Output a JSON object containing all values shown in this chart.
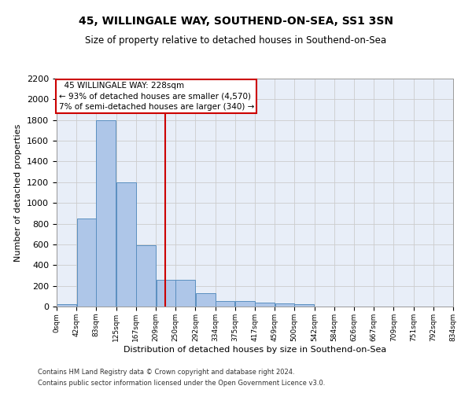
{
  "title": "45, WILLINGALE WAY, SOUTHEND-ON-SEA, SS1 3SN",
  "subtitle": "Size of property relative to detached houses in Southend-on-Sea",
  "xlabel": "Distribution of detached houses by size in Southend-on-Sea",
  "ylabel": "Number of detached properties",
  "footnote1": "Contains HM Land Registry data © Crown copyright and database right 2024.",
  "footnote2": "Contains public sector information licensed under the Open Government Licence v3.0.",
  "bin_edges": [
    0,
    42,
    83,
    125,
    167,
    209,
    250,
    292,
    334,
    375,
    417,
    459,
    500,
    542,
    584,
    626,
    667,
    709,
    751,
    792,
    834
  ],
  "bar_heights": [
    25,
    850,
    1800,
    1200,
    590,
    260,
    260,
    130,
    50,
    50,
    35,
    30,
    20,
    0,
    0,
    0,
    0,
    0,
    0,
    0
  ],
  "bar_color": "#aec6e8",
  "bar_edge_color": "#5a8fc0",
  "grid_color": "#cccccc",
  "bg_color": "#e8eef8",
  "red_line_x": 228,
  "annotation_text": "  45 WILLINGALE WAY: 228sqm  \n← 93% of detached houses are smaller (4,570)\n7% of semi-detached houses are larger (340) →",
  "annotation_box_color": "#cc0000",
  "ylim": [
    0,
    2200
  ],
  "yticks": [
    0,
    200,
    400,
    600,
    800,
    1000,
    1200,
    1400,
    1600,
    1800,
    2000,
    2200
  ],
  "title_fontsize": 10,
  "subtitle_fontsize": 8.5,
  "ylabel_fontsize": 8,
  "xlabel_fontsize": 8,
  "ytick_fontsize": 8,
  "xtick_fontsize": 6.5,
  "footnote_fontsize": 6,
  "annotation_fontsize": 7.5
}
